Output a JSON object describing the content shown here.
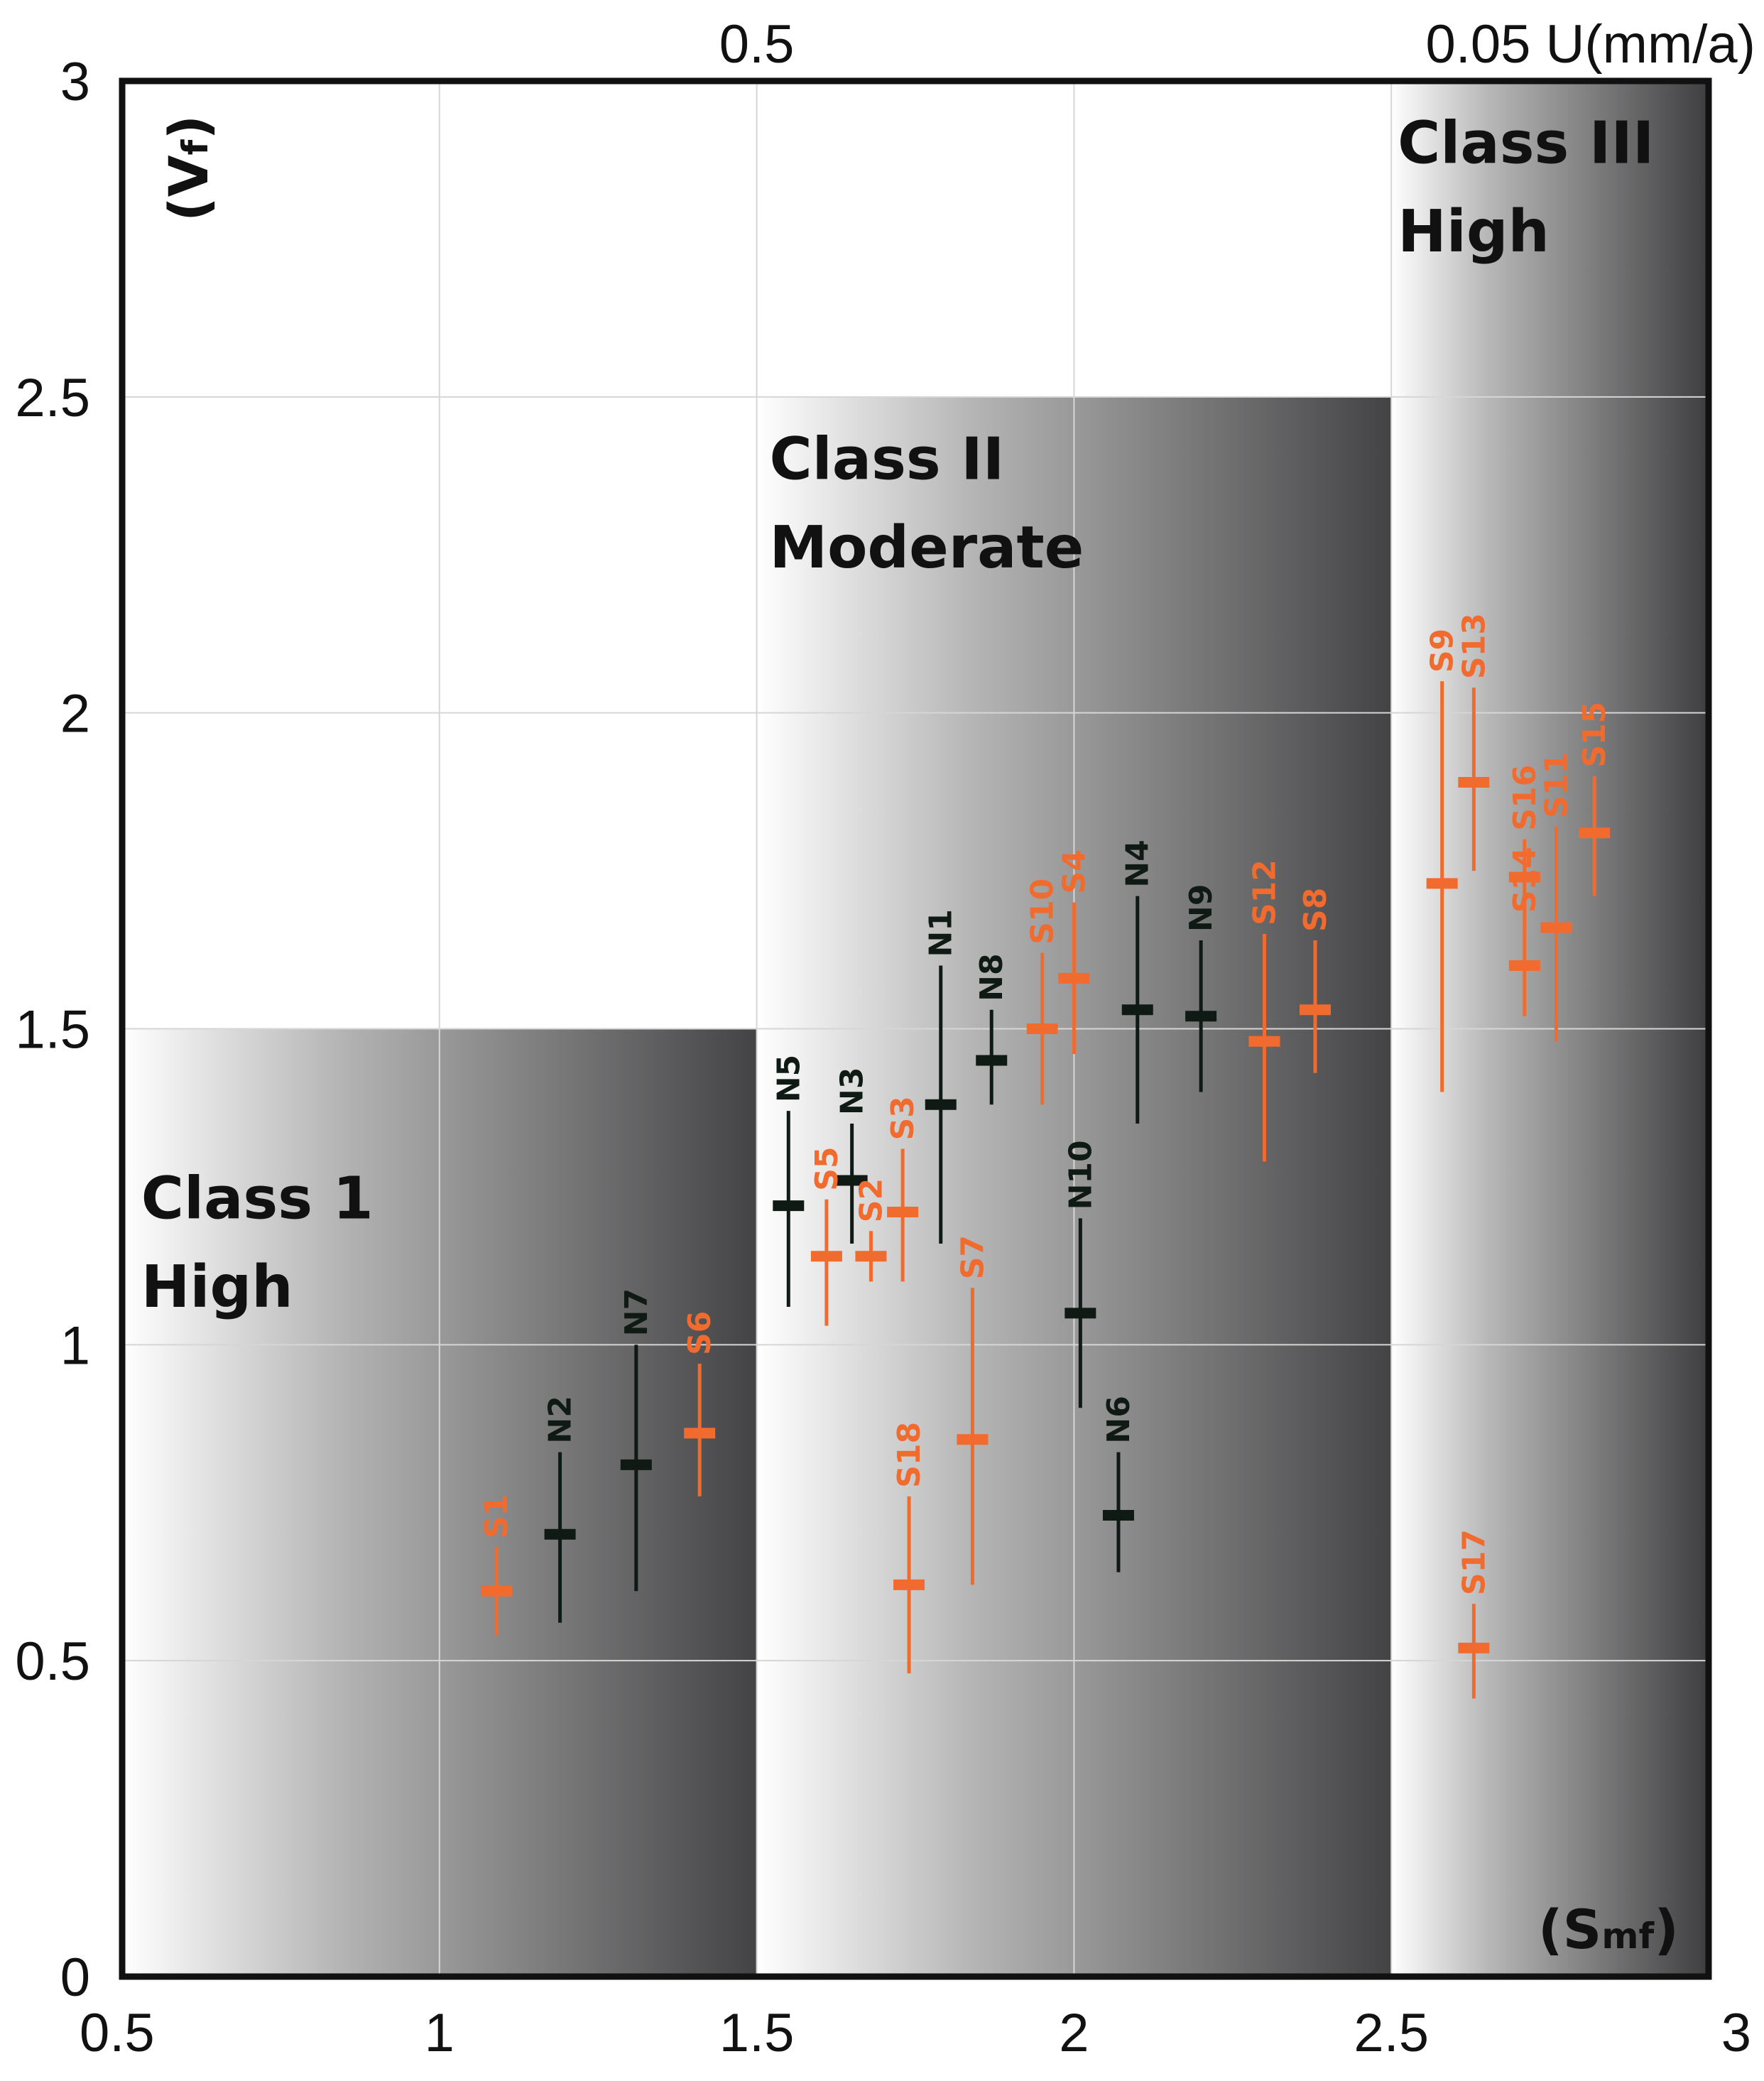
{
  "chart_data": {
    "type": "scatter",
    "xlabel": "S",
    "xlabel_sub": "mf",
    "ylabel": "V",
    "ylabel_sub": "f",
    "xlim": [
      0.5,
      3
    ],
    "ylim": [
      0,
      3
    ],
    "x_ticks": [
      0.5,
      1,
      1.5,
      2,
      2.5,
      3
    ],
    "y_ticks": [
      0,
      0.5,
      1,
      1.5,
      2,
      2.5,
      3
    ],
    "x_tick_labels": [
      "0.5",
      "1",
      "1.5",
      "2",
      "2.5",
      "3"
    ],
    "y_tick_labels": [
      "0",
      "0.5",
      "1",
      "1.5",
      "2",
      "2.5",
      "3"
    ],
    "top_axis": [
      {
        "x": 1.5,
        "label": "0.5"
      },
      {
        "x": 2.5,
        "label": "0.05 U(mm/a)"
      }
    ],
    "grid": true,
    "regions": [
      {
        "name": "class-1",
        "x0": 0.5,
        "x1": 1.5,
        "y0": 0,
        "y1": 1.5,
        "title": "Class 1",
        "subtitle": "High",
        "label_x": 0.53,
        "label_y1": 1.2,
        "label_y2": 1.06
      },
      {
        "name": "class-2",
        "x0": 1.5,
        "x1": 2.5,
        "y0": 0,
        "y1": 2.5,
        "title": "Class II",
        "subtitle": "Moderate",
        "label_x": 1.52,
        "label_y1": 2.37,
        "label_y2": 2.23
      },
      {
        "name": "class-3",
        "x0": 2.5,
        "x1": 3.0,
        "y0": 0,
        "y1": 3.0,
        "title": "Class III",
        "subtitle": "High",
        "label_x": 2.51,
        "label_y1": 2.87,
        "label_y2": 2.73
      }
    ],
    "series": [
      {
        "name": "N",
        "color": "#0f1a14",
        "points": [
          {
            "label": "N1",
            "x": 1.79,
            "y": 1.38,
            "ylow": 1.16,
            "yhigh": 1.6
          },
          {
            "label": "N2",
            "x": 1.19,
            "y": 0.7,
            "ylow": 0.56,
            "yhigh": 0.83
          },
          {
            "label": "N3",
            "x": 1.65,
            "y": 1.26,
            "ylow": 1.16,
            "yhigh": 1.35
          },
          {
            "label": "N4",
            "x": 2.1,
            "y": 1.53,
            "ylow": 1.35,
            "yhigh": 1.71
          },
          {
            "label": "N5",
            "x": 1.55,
            "y": 1.22,
            "ylow": 1.06,
            "yhigh": 1.37
          },
          {
            "label": "N6",
            "x": 2.07,
            "y": 0.73,
            "ylow": 0.64,
            "yhigh": 0.83
          },
          {
            "label": "N7",
            "x": 1.31,
            "y": 0.81,
            "ylow": 0.61,
            "yhigh": 1.0
          },
          {
            "label": "N8",
            "x": 1.87,
            "y": 1.45,
            "ylow": 1.38,
            "yhigh": 1.53
          },
          {
            "label": "N9",
            "x": 2.2,
            "y": 1.52,
            "ylow": 1.4,
            "yhigh": 1.64
          },
          {
            "label": "N10",
            "x": 2.01,
            "y": 1.05,
            "ylow": 0.9,
            "yhigh": 1.2
          }
        ]
      },
      {
        "name": "S",
        "color": "#f26b2e",
        "points": [
          {
            "label": "S1",
            "x": 1.09,
            "y": 0.61,
            "ylow": 0.54,
            "yhigh": 0.68
          },
          {
            "label": "S2",
            "x": 1.68,
            "y": 1.14,
            "ylow": 1.1,
            "yhigh": 1.18
          },
          {
            "label": "S3",
            "x": 1.73,
            "y": 1.21,
            "ylow": 1.1,
            "yhigh": 1.31
          },
          {
            "label": "S4",
            "x": 2.0,
            "y": 1.58,
            "ylow": 1.46,
            "yhigh": 1.7
          },
          {
            "label": "S5",
            "x": 1.61,
            "y": 1.14,
            "ylow": 1.03,
            "yhigh": 1.23
          },
          {
            "label": "S6",
            "x": 1.41,
            "y": 0.86,
            "ylow": 0.76,
            "yhigh": 0.97
          },
          {
            "label": "S7",
            "x": 1.84,
            "y": 0.85,
            "ylow": 0.62,
            "yhigh": 1.09
          },
          {
            "label": "S8",
            "x": 2.38,
            "y": 1.53,
            "ylow": 1.43,
            "yhigh": 1.64
          },
          {
            "label": "S9",
            "x": 2.58,
            "y": 1.73,
            "ylow": 1.4,
            "yhigh": 2.05
          },
          {
            "label": "S10",
            "x": 1.95,
            "y": 1.5,
            "ylow": 1.38,
            "yhigh": 1.62
          },
          {
            "label": "S11",
            "x": 2.76,
            "y": 1.66,
            "ylow": 1.48,
            "yhigh": 1.82
          },
          {
            "label": "S12",
            "x": 2.3,
            "y": 1.48,
            "ylow": 1.29,
            "yhigh": 1.65
          },
          {
            "label": "S13",
            "x": 2.63,
            "y": 1.89,
            "ylow": 1.75,
            "yhigh": 2.04
          },
          {
            "label": "S14",
            "x": 2.71,
            "y": 1.6,
            "ylow": 1.52,
            "yhigh": 1.67
          },
          {
            "label": "S15",
            "x": 2.82,
            "y": 1.81,
            "ylow": 1.71,
            "yhigh": 1.9
          },
          {
            "label": "S16",
            "x": 2.71,
            "y": 1.74,
            "ylow": 1.66,
            "yhigh": 1.8
          },
          {
            "label": "S17",
            "x": 2.63,
            "y": 0.52,
            "ylow": 0.44,
            "yhigh": 0.59
          },
          {
            "label": "S18",
            "x": 1.74,
            "y": 0.62,
            "ylow": 0.48,
            "yhigh": 0.76
          }
        ]
      }
    ]
  }
}
